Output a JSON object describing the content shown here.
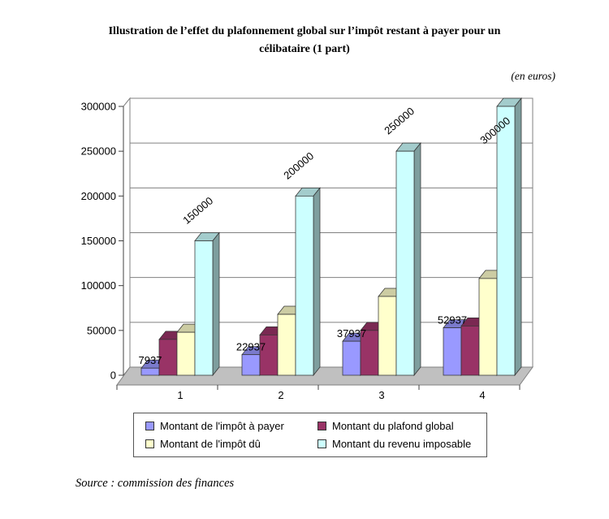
{
  "title_lines": [
    "Illustration de l’effet du plafonnement global sur l’impôt restant à payer pour un",
    "célibataire (1 part)"
  ],
  "units_note": "(en euros)",
  "source": "Source : commission des finances",
  "chart_data": {
    "type": "bar",
    "projection": "3d",
    "title": "Illustration de l’effet du plafonnement global sur l’impôt restant à payer pour un célibataire (1 part)",
    "categories": [
      "1",
      "2",
      "3",
      "4"
    ],
    "series": [
      {
        "name": "Montant de l'impôt à payer",
        "color": "#9999FF",
        "values": [
          7937,
          22937,
          37937,
          52937
        ],
        "labels": [
          "7937",
          "22937",
          "37937",
          "52937"
        ],
        "label_style": "horizontal"
      },
      {
        "name": "Montant du plafond global",
        "color": "#993366",
        "values": [
          40000,
          45000,
          50000,
          55000
        ]
      },
      {
        "name": "Montant de l'impôt dû",
        "color": "#FFFFCC",
        "values": [
          47937,
          67937,
          87937,
          107937
        ]
      },
      {
        "name": "Montant du revenu imposable",
        "color": "#CCFFFF",
        "values": [
          150000,
          200000,
          250000,
          300000
        ],
        "labels": [
          "150000",
          "200000",
          "250000",
          "300000"
        ],
        "label_style": "rotated"
      }
    ],
    "ylim": [
      0,
      300000
    ],
    "ytick_step": 50000,
    "ytick_labels": [
      "0",
      "50000",
      "100000",
      "150000",
      "200000",
      "250000",
      "300000"
    ],
    "grid": true,
    "legend_position": "bottom",
    "wall_color": "#FFFFFF",
    "floor_color": "#C0C0C0"
  }
}
